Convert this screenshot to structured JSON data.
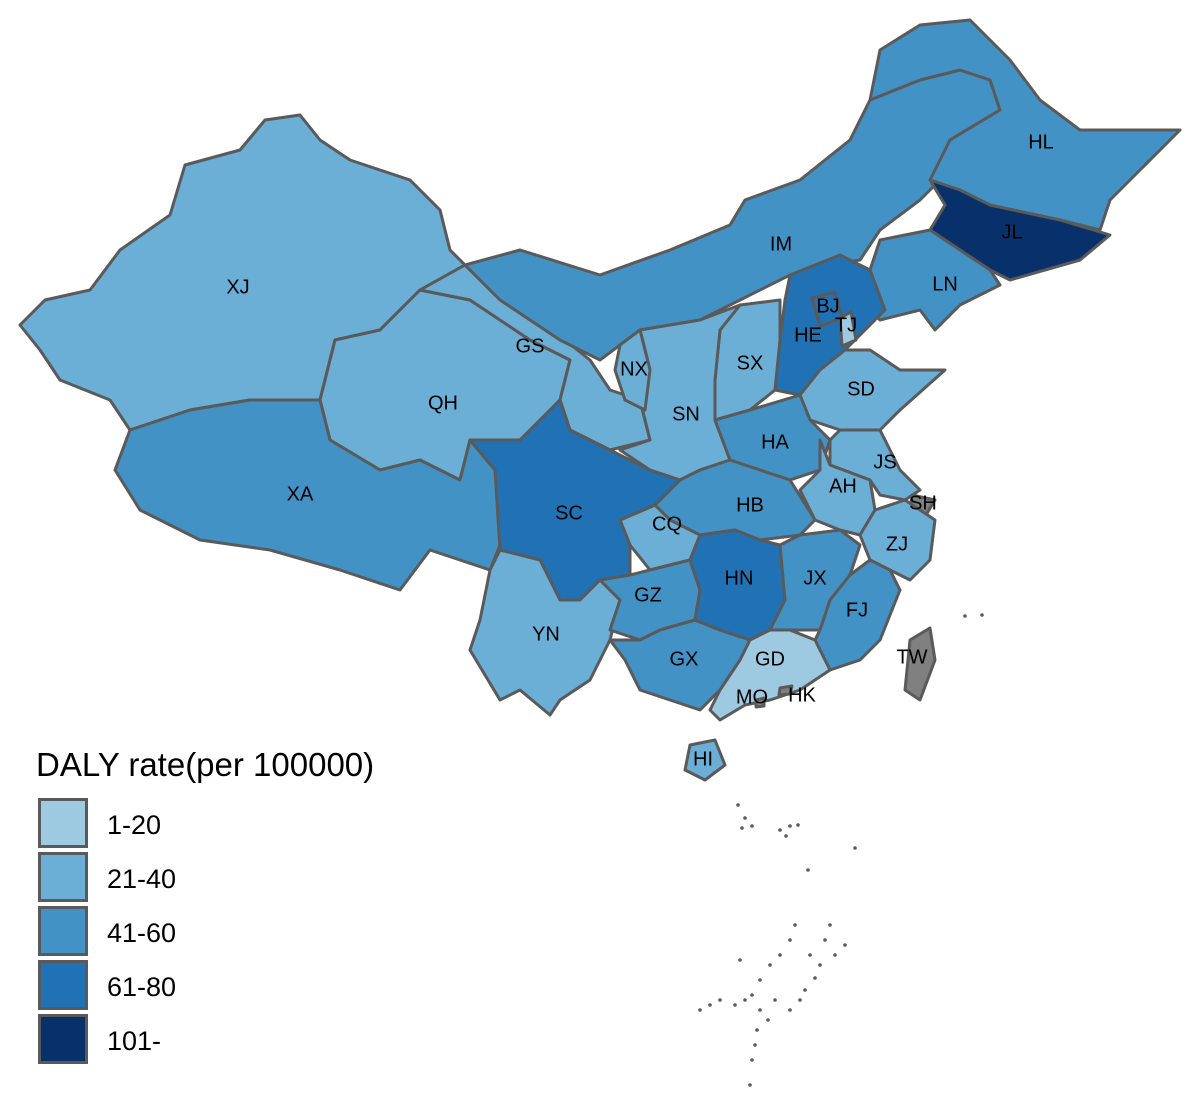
{
  "chart_data": {
    "type": "choropleth",
    "title": "",
    "legend": {
      "title": "DALY rate(per 100000)",
      "placement": "bottom-left",
      "classes": [
        {
          "label": "1-20",
          "color": "#9ecae1"
        },
        {
          "label": "21-40",
          "color": "#6baed6"
        },
        {
          "label": "41-60",
          "color": "#4292c6"
        },
        {
          "label": "61-80",
          "color": "#2171b5"
        },
        {
          "label": "101-",
          "color": "#08306b"
        }
      ]
    },
    "no_data_color": "#808080",
    "regions": [
      {
        "code": "XJ",
        "class": "21-40"
      },
      {
        "code": "QH",
        "class": "21-40"
      },
      {
        "code": "GS",
        "class": "21-40"
      },
      {
        "code": "XA",
        "class": "41-60"
      },
      {
        "code": "IM",
        "class": "41-60"
      },
      {
        "code": "HL",
        "class": "41-60"
      },
      {
        "code": "JL",
        "class": "101-"
      },
      {
        "code": "LN",
        "class": "41-60"
      },
      {
        "code": "HE",
        "class": "61-80"
      },
      {
        "code": "BJ",
        "class": "61-80"
      },
      {
        "code": "TJ",
        "class": "1-20"
      },
      {
        "code": "SX",
        "class": "21-40"
      },
      {
        "code": "SN",
        "class": "21-40"
      },
      {
        "code": "NX",
        "class": "21-40"
      },
      {
        "code": "SD",
        "class": "21-40"
      },
      {
        "code": "HA",
        "class": "41-60"
      },
      {
        "code": "JS",
        "class": "21-40"
      },
      {
        "code": "AH",
        "class": "21-40"
      },
      {
        "code": "SH",
        "class": null
      },
      {
        "code": "ZJ",
        "class": "21-40"
      },
      {
        "code": "HB",
        "class": "41-60"
      },
      {
        "code": "CQ",
        "class": "21-40"
      },
      {
        "code": "SC",
        "class": "61-80"
      },
      {
        "code": "YN",
        "class": "21-40"
      },
      {
        "code": "GZ",
        "class": "41-60"
      },
      {
        "code": "GX",
        "class": "41-60"
      },
      {
        "code": "HN",
        "class": "61-80"
      },
      {
        "code": "JX",
        "class": "41-60"
      },
      {
        "code": "FJ",
        "class": "41-60"
      },
      {
        "code": "GD",
        "class": "1-20"
      },
      {
        "code": "HI",
        "class": "21-40"
      },
      {
        "code": "TW",
        "class": null
      },
      {
        "code": "HK",
        "class": null
      },
      {
        "code": "MO",
        "class": null
      }
    ]
  }
}
